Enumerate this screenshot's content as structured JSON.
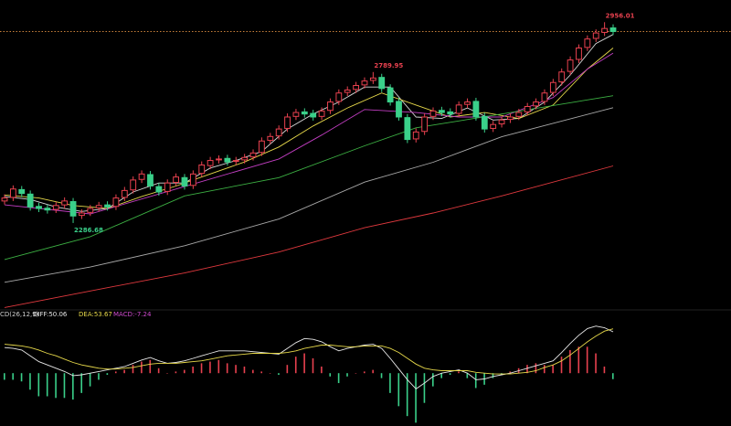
{
  "chart_data": {
    "type": "candlestick",
    "open": [
      2360,
      2372,
      2398,
      2383,
      2342,
      2336,
      2332,
      2347,
      2358,
      2312,
      2322,
      2337,
      2347,
      2342,
      2372,
      2397,
      2432,
      2448,
      2408,
      2392,
      2422,
      2438,
      2412,
      2452,
      2478,
      2497,
      2502,
      2492,
      2497,
      2507,
      2522,
      2562,
      2577,
      2602,
      2642,
      2657,
      2652,
      2642,
      2662,
      2692,
      2722,
      2732,
      2747,
      2762,
      2772,
      2737,
      2692,
      2638,
      2567,
      2592,
      2642,
      2662,
      2657,
      2652,
      2682,
      2692,
      2642,
      2602,
      2617,
      2632,
      2642,
      2657,
      2677,
      2692,
      2722,
      2757,
      2792,
      2832,
      2872,
      2902,
      2922,
      2937
    ],
    "high": [
      2382,
      2412,
      2410,
      2395,
      2354,
      2348,
      2357,
      2372,
      2370,
      2332,
      2347,
      2357,
      2359,
      2382,
      2407,
      2442,
      2462,
      2460,
      2420,
      2432,
      2452,
      2450,
      2462,
      2492,
      2507,
      2512,
      2514,
      2507,
      2517,
      2532,
      2572,
      2587,
      2612,
      2652,
      2667,
      2669,
      2664,
      2672,
      2702,
      2732,
      2742,
      2757,
      2772,
      2789.95,
      2784,
      2749,
      2704,
      2650,
      2602,
      2652,
      2672,
      2674,
      2669,
      2692,
      2702,
      2704,
      2654,
      2627,
      2642,
      2652,
      2667,
      2687,
      2702,
      2732,
      2767,
      2802,
      2842,
      2882,
      2912,
      2932,
      2956.01,
      2949
    ],
    "low": [
      2348,
      2360,
      2373,
      2328,
      2323,
      2318,
      2320,
      2335,
      2286.68,
      2300,
      2310,
      2325,
      2328,
      2330,
      2360,
      2385,
      2420,
      2398,
      2378,
      2380,
      2410,
      2398,
      2400,
      2440,
      2466,
      2485,
      2478,
      2480,
      2485,
      2495,
      2510,
      2550,
      2565,
      2590,
      2630,
      2638,
      2628,
      2630,
      2650,
      2680,
      2710,
      2720,
      2735,
      2750,
      2723,
      2678,
      2628,
      2553,
      2555,
      2580,
      2630,
      2643,
      2638,
      2640,
      2670,
      2628,
      2588,
      2590,
      2605,
      2620,
      2630,
      2645,
      2665,
      2680,
      2710,
      2745,
      2780,
      2820,
      2860,
      2890,
      2910,
      2913
    ],
    "close": [
      2370,
      2400,
      2385,
      2340,
      2335,
      2330,
      2345,
      2360,
      2310,
      2320,
      2335,
      2345,
      2340,
      2370,
      2395,
      2430,
      2450,
      2410,
      2390,
      2420,
      2440,
      2410,
      2450,
      2480,
      2495,
      2500,
      2490,
      2495,
      2505,
      2520,
      2560,
      2575,
      2600,
      2640,
      2655,
      2650,
      2640,
      2660,
      2690,
      2720,
      2730,
      2745,
      2760,
      2770,
      2735,
      2690,
      2640,
      2565,
      2590,
      2640,
      2660,
      2655,
      2650,
      2680,
      2690,
      2640,
      2600,
      2615,
      2630,
      2640,
      2655,
      2675,
      2690,
      2720,
      2755,
      2790,
      2830,
      2870,
      2900,
      2920,
      2935,
      2925
    ],
    "up_color": "#e8414f",
    "down_color": "#3ad08a",
    "ylim": [
      2000,
      3030
    ],
    "ma": [
      {
        "color": "#d8d8d8",
        "x": [
          0,
          3,
          6,
          9,
          12,
          15,
          18,
          21,
          24,
          27,
          30,
          33,
          36,
          39,
          42,
          45,
          48,
          51,
          54,
          57,
          60,
          63,
          66,
          69,
          71
        ],
        "values": [
          2375,
          2365,
          2340,
          2325,
          2335,
          2390,
          2420,
          2420,
          2470,
          2495,
          2525,
          2600,
          2650,
          2690,
          2740,
          2740,
          2640,
          2635,
          2670,
          2630,
          2635,
          2690,
          2780,
          2885,
          2915
        ]
      },
      {
        "color": "#e6d84a",
        "x": [
          0,
          4,
          8,
          12,
          16,
          20,
          24,
          28,
          32,
          36,
          40,
          44,
          48,
          52,
          56,
          60,
          64,
          68,
          71
        ],
        "values": [
          2380,
          2370,
          2345,
          2335,
          2375,
          2410,
          2450,
          2490,
          2540,
          2610,
          2670,
          2720,
          2680,
          2640,
          2655,
          2635,
          2680,
          2800,
          2870
        ]
      },
      {
        "color": "#c23ec2",
        "x": [
          0,
          10,
          21,
          32,
          37,
          42,
          48,
          53,
          58,
          64,
          68,
          71
        ],
        "values": [
          2347,
          2317,
          2408,
          2500,
          2580,
          2665,
          2655,
          2640,
          2640,
          2705,
          2800,
          2853
        ]
      },
      {
        "color": "#3cb043",
        "x": [
          0,
          10,
          21,
          32,
          42,
          48,
          58,
          71
        ],
        "values": [
          2165,
          2241,
          2377,
          2438,
          2544,
          2604,
          2650,
          2711
        ]
      },
      {
        "color": "#a8a8a8",
        "x": [
          0,
          10,
          21,
          32,
          42,
          50,
          58,
          71
        ],
        "values": [
          2089,
          2140,
          2211,
          2300,
          2423,
          2489,
          2574,
          2671
        ]
      },
      {
        "color": "#e0393e",
        "x": [
          0,
          10,
          21,
          32,
          42,
          50,
          58,
          71
        ],
        "values": [
          2005,
          2060,
          2120,
          2190,
          2271,
          2320,
          2377,
          2477
        ]
      }
    ],
    "macd_title": "CD(26,12,9)",
    "diff_label": "DIFF:50.06",
    "dea_label": "DEA:53.67",
    "macd_label": "MACD:-7.24",
    "diff_color": "#e8e8e8",
    "dea_color": "#e6d84a",
    "macd_label_color": "#d04ad0",
    "macd_ylim": [
      -64,
      70
    ],
    "diff": [
      31,
      30,
      28,
      21,
      14,
      10,
      6,
      2,
      -3,
      -2,
      0,
      2,
      4,
      6,
      8,
      12,
      16,
      19,
      15,
      12,
      13,
      15,
      18,
      21,
      24,
      27,
      27,
      27,
      27,
      26,
      25,
      24,
      23,
      30,
      37,
      42,
      41,
      38,
      32,
      27,
      30,
      32,
      34,
      35,
      30,
      18,
      5,
      -8,
      -19,
      -12,
      -4,
      0,
      2,
      4,
      0,
      -8,
      -7,
      -4,
      -2,
      0,
      3,
      6,
      9,
      12,
      15,
      25,
      36,
      46,
      54,
      57,
      55,
      50.06
    ],
    "dea": [
      35,
      34,
      33,
      31,
      28,
      24,
      21,
      17,
      13,
      10,
      8,
      6,
      5,
      5,
      6,
      7,
      9,
      11,
      12,
      12,
      12,
      13,
      14,
      15,
      17,
      19,
      21,
      22,
      23,
      24,
      24,
      24,
      24,
      25,
      27,
      30,
      32,
      34,
      34,
      33,
      32,
      32,
      33,
      33,
      33,
      30,
      25,
      18,
      11,
      6,
      4,
      3,
      3,
      3,
      3,
      1,
      0,
      -1,
      -1,
      -1,
      0,
      1,
      3,
      7,
      10,
      15,
      22,
      30,
      38,
      45,
      51,
      53.67
    ],
    "macd": [
      -8,
      -8,
      -10,
      -20,
      -28,
      -28,
      -30,
      -30,
      -32,
      -24,
      -16,
      -8,
      -2,
      2,
      4,
      10,
      14,
      16,
      6,
      0,
      2,
      4,
      8,
      12,
      14,
      16,
      12,
      10,
      8,
      4,
      2,
      0,
      -2,
      10,
      20,
      24,
      18,
      8,
      -4,
      -12,
      -4,
      0,
      2,
      4,
      -6,
      -24,
      -40,
      -52,
      -60,
      -36,
      -16,
      -6,
      -2,
      2,
      -6,
      -18,
      -14,
      -6,
      -2,
      2,
      6,
      10,
      12,
      10,
      10,
      20,
      28,
      32,
      32,
      24,
      8,
      -7.24
    ]
  }
}
